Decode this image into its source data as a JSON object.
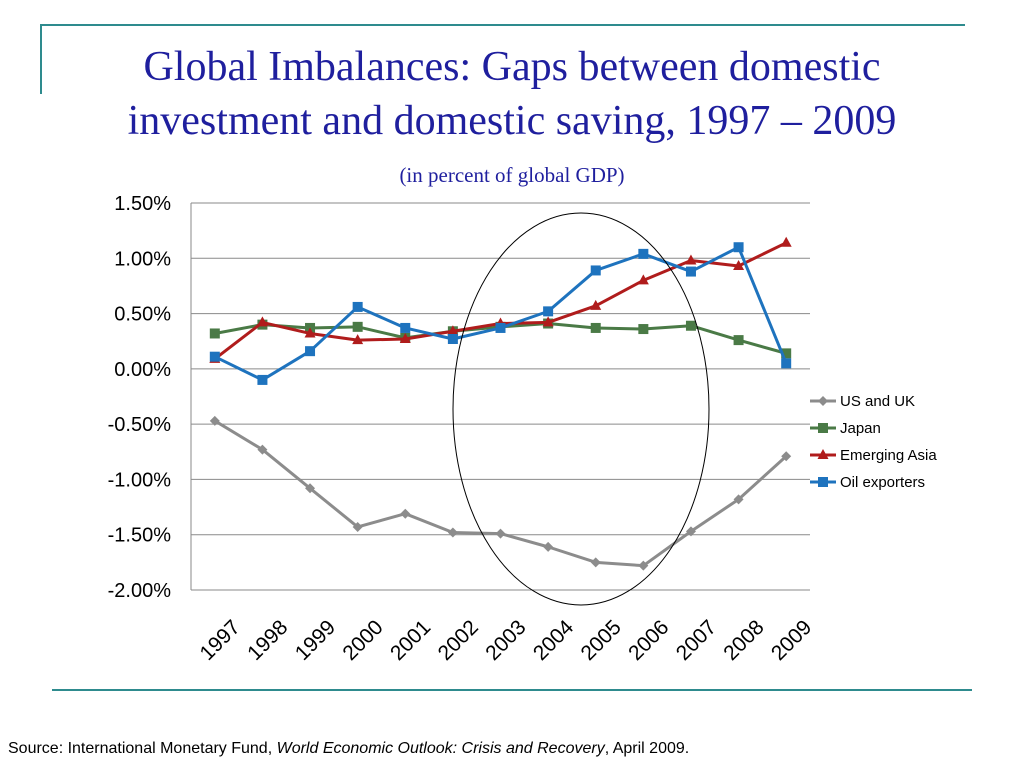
{
  "slide": {
    "title_line1": "Global Imbalances: Gaps between domestic",
    "title_line2": "investment and domestic saving, 1997 – 2009",
    "subtitle": "(in percent of global GDP)",
    "source_prefix": "Source: International Monetary Fund, ",
    "source_italic": "World Economic Outlook: Crisis and Recovery",
    "source_suffix": ", April 2009.",
    "accent_color": "#2e8b8e",
    "title_color": "#1f1f9e"
  },
  "chart_data": {
    "type": "line",
    "x": [
      "1997",
      "1998",
      "1999",
      "2000",
      "2001",
      "2002",
      "2003",
      "2004",
      "2005",
      "2006",
      "2007",
      "2008",
      "2009"
    ],
    "ylim": [
      -2.0,
      1.5
    ],
    "yticks": [
      "1.50%",
      "1.00%",
      "0.50%",
      "0.00%",
      "-0.50%",
      "-1.00%",
      "-1.50%",
      "-2.00%"
    ],
    "ytick_values": [
      1.5,
      1.0,
      0.5,
      0.0,
      -0.5,
      -1.0,
      -1.5,
      -2.0
    ],
    "grid": true,
    "legend_position": "right",
    "annotation": "ellipse around 2003-2007",
    "series": [
      {
        "name": "US and UK",
        "color": "#8c8c8c",
        "marker": "diamond",
        "values": [
          -0.47,
          -0.73,
          -1.08,
          -1.43,
          -1.31,
          -1.48,
          -1.49,
          -1.61,
          -1.75,
          -1.78,
          -1.47,
          -1.18,
          -0.79
        ]
      },
      {
        "name": "Japan",
        "color": "#4a7a46",
        "marker": "square",
        "values": [
          0.32,
          0.4,
          0.37,
          0.38,
          0.28,
          0.34,
          0.38,
          0.41,
          0.37,
          0.36,
          0.39,
          0.26,
          0.14
        ]
      },
      {
        "name": "Emerging Asia",
        "color": "#b01c1c",
        "marker": "triangle",
        "values": [
          0.09,
          0.42,
          0.32,
          0.26,
          0.27,
          0.34,
          0.41,
          0.42,
          0.57,
          0.8,
          0.98,
          0.93,
          1.14
        ]
      },
      {
        "name": "Oil exporters",
        "color": "#1e73be",
        "marker": "square",
        "values": [
          0.11,
          -0.1,
          0.16,
          0.56,
          0.37,
          0.27,
          0.37,
          0.52,
          0.89,
          1.04,
          0.88,
          1.1,
          0.05
        ]
      }
    ]
  }
}
